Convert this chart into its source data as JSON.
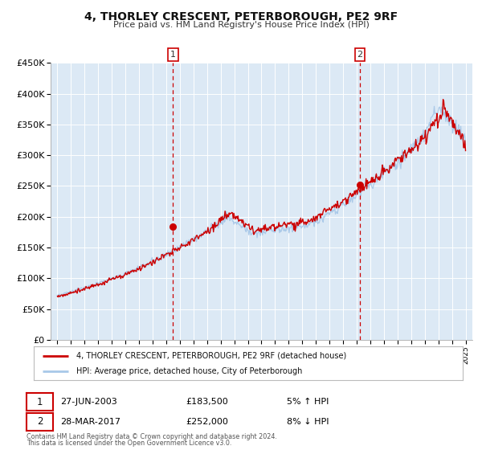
{
  "title": "4, THORLEY CRESCENT, PETERBOROUGH, PE2 9RF",
  "subtitle": "Price paid vs. HM Land Registry's House Price Index (HPI)",
  "background_color": "#ffffff",
  "plot_bg_color": "#dce9f5",
  "grid_color": "#ffffff",
  "sale1": {
    "date_num": 2003.49,
    "price": 183500,
    "label": "1",
    "date_str": "27-JUN-2003",
    "price_str": "£183,500",
    "pct": "5%",
    "dir": "↑"
  },
  "sale2": {
    "date_num": 2017.24,
    "price": 252000,
    "label": "2",
    "date_str": "28-MAR-2017",
    "price_str": "£252,000",
    "pct": "8%",
    "dir": "↓"
  },
  "legend_line1": "4, THORLEY CRESCENT, PETERBOROUGH, PE2 9RF (detached house)",
  "legend_line2": "HPI: Average price, detached house, City of Peterborough",
  "footer1": "Contains HM Land Registry data © Crown copyright and database right 2024.",
  "footer2": "This data is licensed under the Open Government Licence v3.0.",
  "hpi_color": "#a8c8e8",
  "price_color": "#cc0000",
  "vline_color": "#cc0000",
  "ylim": [
    0,
    450000
  ],
  "yticks": [
    0,
    50000,
    100000,
    150000,
    200000,
    250000,
    300000,
    350000,
    400000,
    450000
  ],
  "ytick_labels": [
    "£0",
    "£50K",
    "£100K",
    "£150K",
    "£200K",
    "£250K",
    "£300K",
    "£350K",
    "£400K",
    "£450K"
  ],
  "xlim": [
    1994.5,
    2025.5
  ],
  "xticks": [
    1995,
    1996,
    1997,
    1998,
    1999,
    2000,
    2001,
    2002,
    2003,
    2004,
    2005,
    2006,
    2007,
    2008,
    2009,
    2010,
    2011,
    2012,
    2013,
    2014,
    2015,
    2016,
    2017,
    2018,
    2019,
    2020,
    2021,
    2022,
    2023,
    2024,
    2025
  ]
}
